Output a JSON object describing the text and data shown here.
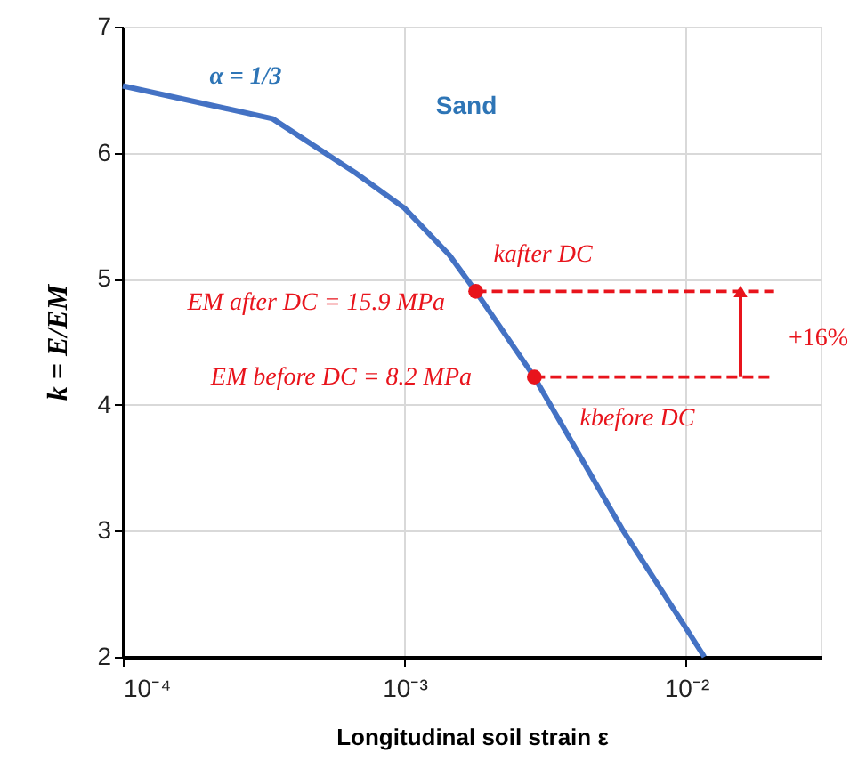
{
  "chart_data": {
    "type": "line",
    "xlabel": "Longitudinal soil strain ε",
    "ylabel": "k = E/EM",
    "log": "x",
    "grid": true,
    "xlim": [
      0.0001,
      0.03
    ],
    "ylim": [
      2,
      7
    ],
    "xticks": [
      {
        "value": 0.0001,
        "label": "10⁻⁴"
      },
      {
        "value": 0.001,
        "label": "10⁻³"
      },
      {
        "value": 0.01,
        "label": "10⁻²"
      }
    ],
    "yticks": [
      2,
      3,
      4,
      5,
      6,
      7
    ],
    "series": [
      {
        "color": "#4472c4",
        "x": [
          0.0001,
          0.00034,
          0.00067,
          0.001,
          0.00144,
          0.00179,
          0.00289,
          0.0059,
          0.0116
        ],
        "values": [
          6.53,
          6.27,
          5.84,
          5.56,
          5.19,
          4.9,
          4.22,
          3.02,
          2.0
        ]
      },
      {
        "type": "scatter",
        "color": "#e8141c",
        "x": [
          0.00179,
          0.00289
        ],
        "values": [
          4.9,
          4.22
        ]
      },
      {
        "color": "#e8141c",
        "line_style": "dashed",
        "x": [
          0.00179,
          0.0205
        ],
        "values": [
          4.9,
          4.9
        ]
      },
      {
        "color": "#e8141c",
        "line_style": "dashed",
        "x": [
          0.00289,
          0.0205
        ],
        "values": [
          4.22,
          4.22
        ]
      }
    ],
    "annotations": [
      "α = 1/3",
      "Sand",
      "kafter DC",
      "EM after DC = 15.9 MPa",
      "EM before DC = 8.2 MPa",
      "kbefore DC",
      "+16%"
    ]
  }
}
